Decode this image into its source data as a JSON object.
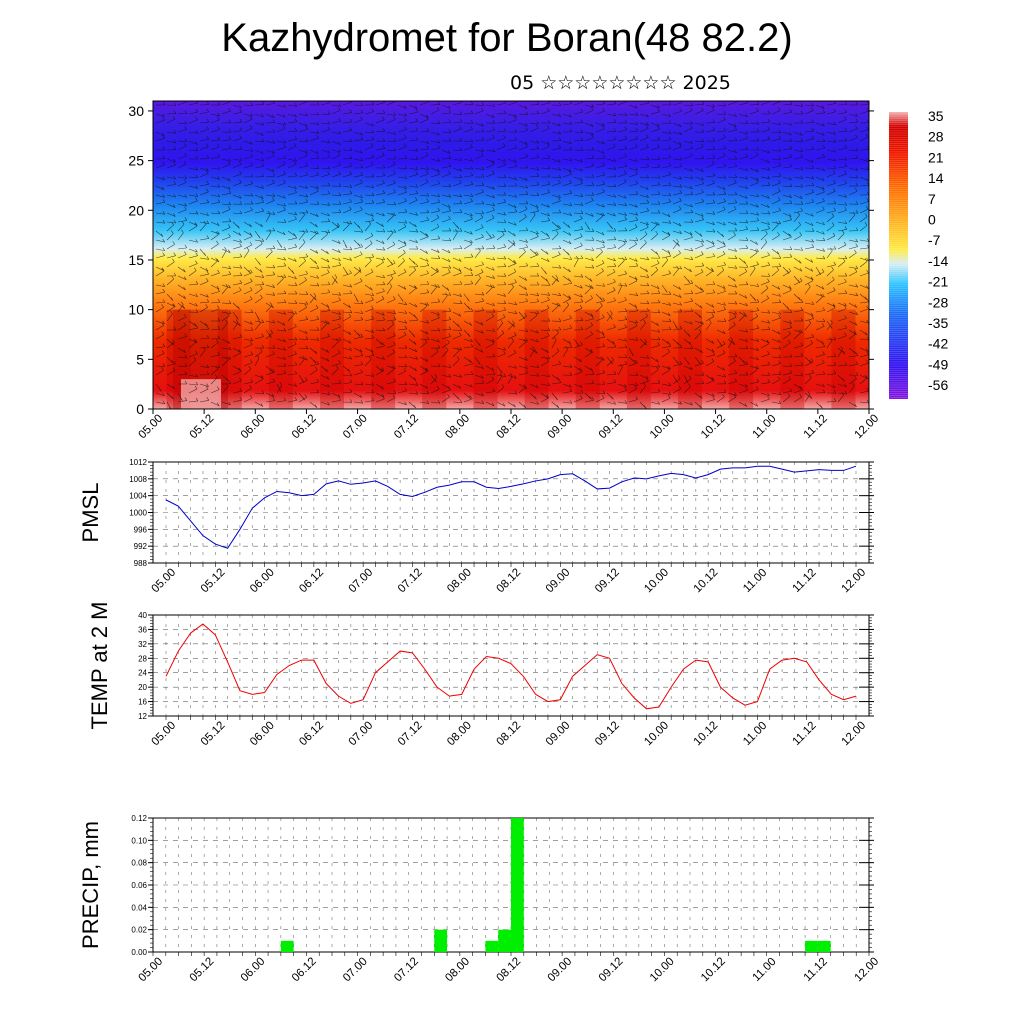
{
  "title": "Kazhydromet for Boran(48 82.2)",
  "subtitle": "05 ☆☆☆☆☆☆☆☆ 2025",
  "chart_data": [
    {
      "id": "cross-section",
      "type": "heatmap",
      "description_free": true,
      "ylim": [
        0,
        31
      ],
      "yticks": [
        0,
        5,
        10,
        15,
        20,
        25,
        30
      ],
      "xtick_labels": [
        "05.00",
        "05.12",
        "06.00",
        "06.12",
        "07.00",
        "07.12",
        "08.00",
        "08.12",
        "09.00",
        "09.12",
        "10.00",
        "10.12",
        "11.00",
        "11.12",
        "12.00"
      ],
      "colorbar_labels": [
        "35",
        "28",
        "21",
        "14",
        "7",
        "0",
        "-7",
        "-14",
        "-21",
        "-28",
        "-35",
        "-42",
        "-49",
        "-56"
      ],
      "value_range": [
        -63,
        42
      ],
      "colors": [
        "#7f18e0",
        "#3214f0",
        "#1e6ef7",
        "#2cc4ff",
        "#d6eef5",
        "#ffeb45",
        "#ffb21f",
        "#ff6a00",
        "#ee1600",
        "#d20000",
        "#f4a6a6"
      ]
    },
    {
      "id": "pmsl",
      "type": "line",
      "ylabel": "PMSL",
      "ylim": [
        988,
        1012
      ],
      "yticks": [
        988,
        992,
        996,
        1000,
        1004,
        1008,
        1012
      ],
      "xtick_labels": [
        "05.00",
        "05.12",
        "06.00",
        "06.12",
        "07.00",
        "07.12",
        "08.00",
        "08.12",
        "09.00",
        "09.12",
        "10.00",
        "10.12",
        "11.00",
        "11.12",
        "12.00"
      ],
      "color": "#0000cc",
      "values": [
        1003,
        1001.5,
        998,
        994.5,
        992.5,
        991.5,
        996,
        1001,
        1003.5,
        1005,
        1004.7,
        1004,
        1004.3,
        1006.8,
        1007.5,
        1006.7,
        1007,
        1007.5,
        1006.2,
        1004.3,
        1003.8,
        1004.8,
        1006,
        1006.5,
        1007.3,
        1007.3,
        1006,
        1005.7,
        1006.2,
        1006.8,
        1007.5,
        1008,
        1009,
        1009.2,
        1007.5,
        1005.6,
        1005.8,
        1007.3,
        1008.2,
        1008,
        1008.7,
        1009.3,
        1009,
        1008.2,
        1009,
        1010.3,
        1010.6,
        1010.6,
        1011,
        1011,
        1010.3,
        1009.6,
        1009.9,
        1010.2,
        1010,
        1010,
        1011
      ]
    },
    {
      "id": "temp2m",
      "type": "line",
      "ylabel": "TEMP at 2 M",
      "ylim": [
        12,
        40
      ],
      "yticks": [
        12,
        16,
        20,
        24,
        28,
        32,
        36,
        40
      ],
      "xtick_labels": [
        "05.00",
        "05.12",
        "06.00",
        "06.12",
        "07.00",
        "07.12",
        "08.00",
        "08.12",
        "09.00",
        "09.12",
        "10.00",
        "10.12",
        "11.00",
        "11.12",
        "12.00"
      ],
      "color": "#ee0000",
      "values": [
        23,
        30,
        35,
        37.5,
        34.5,
        27,
        19,
        18,
        18.5,
        23.5,
        26,
        27.5,
        27.5,
        21,
        17.5,
        15.5,
        16.5,
        24,
        27,
        30,
        29.5,
        25,
        20,
        17.5,
        18,
        25,
        28.5,
        28,
        26.5,
        23,
        18,
        16,
        16.5,
        23,
        26,
        29,
        28,
        21,
        17,
        14,
        14.5,
        20,
        25,
        27.5,
        27,
        20,
        17,
        15,
        16,
        25,
        27.5,
        28,
        27,
        22,
        18,
        16.5,
        17.5
      ]
    },
    {
      "id": "precip",
      "type": "bar",
      "ylabel": "PRECIP, mm",
      "ylim": [
        0,
        0.12
      ],
      "yticks": [
        "0.00",
        "0.02",
        "0.04",
        "0.06",
        "0.08",
        "0.10",
        "0.12"
      ],
      "xtick_labels": [
        "05.00",
        "05.12",
        "06.00",
        "06.12",
        "07.00",
        "07.12",
        "08.00",
        "08.12",
        "09.00",
        "09.12",
        "10.00",
        "10.12",
        "11.00",
        "11.12",
        "12.00"
      ],
      "color": "#00ee00",
      "bars": [
        {
          "step": 10,
          "value": 0.01
        },
        {
          "step": 22,
          "value": 0.02
        },
        {
          "step": 26,
          "value": 0.01
        },
        {
          "step": 27,
          "value": 0.02
        },
        {
          "step": 28,
          "value": 0.12
        },
        {
          "step": 51,
          "value": 0.01
        },
        {
          "step": 52,
          "value": 0.01
        }
      ]
    }
  ]
}
